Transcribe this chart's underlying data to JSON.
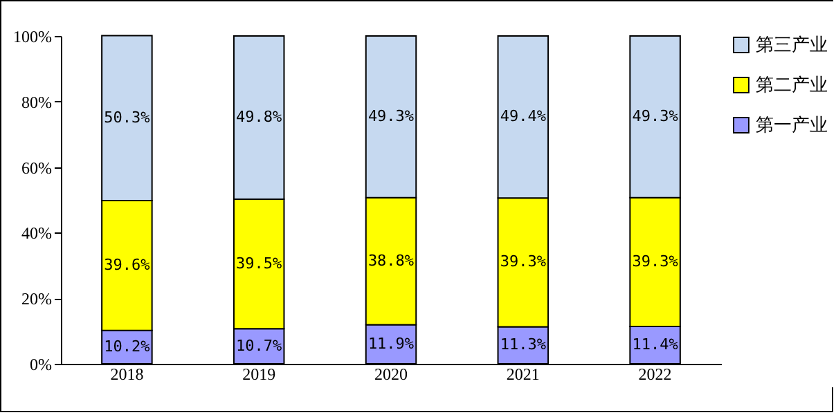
{
  "chart_data": {
    "type": "bar",
    "stacked": true,
    "categories": [
      "2018",
      "2019",
      "2020",
      "2021",
      "2022"
    ],
    "series": [
      {
        "name": "第一产业",
        "color": "#9999ff",
        "values": [
          10.2,
          10.7,
          11.9,
          11.3,
          11.4
        ],
        "value_labels": [
          "10.2%",
          "10.7%",
          "11.9%",
          "11.3%",
          "11.4%"
        ]
      },
      {
        "name": "第二产业",
        "color": "#ffff00",
        "values": [
          39.6,
          39.5,
          38.8,
          39.3,
          39.3
        ],
        "value_labels": [
          "39.6%",
          "39.5%",
          "38.8%",
          "39.3%",
          "39.3%"
        ]
      },
      {
        "name": "第三产业",
        "color": "#c6d9f0",
        "values": [
          50.3,
          49.8,
          49.3,
          49.4,
          49.3
        ],
        "value_labels": [
          "50.3%",
          "49.8%",
          "49.3%",
          "49.4%",
          "49.3%"
        ]
      }
    ],
    "ylim": [
      0,
      100
    ],
    "yticks": [
      {
        "value": 0,
        "label": "0%"
      },
      {
        "value": 20,
        "label": "20%"
      },
      {
        "value": 40,
        "label": "40%"
      },
      {
        "value": 60,
        "label": "60%"
      },
      {
        "value": 80,
        "label": "80%"
      },
      {
        "value": 100,
        "label": "100%"
      }
    ],
    "grid": false,
    "legend": "right"
  }
}
